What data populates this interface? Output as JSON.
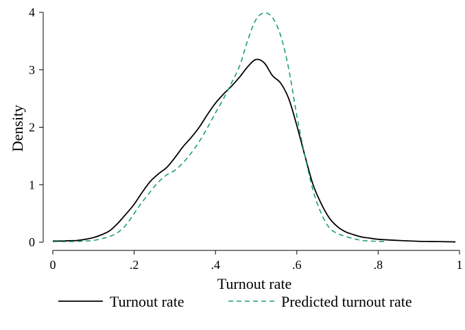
{
  "chart_data": {
    "type": "line",
    "title": "",
    "xlabel": "Turnout rate",
    "ylabel": "Density",
    "xlim": [
      0,
      1
    ],
    "ylim": [
      0,
      4
    ],
    "x_ticks": [
      {
        "value": 0,
        "label": "0"
      },
      {
        "value": 0.2,
        "label": ".2"
      },
      {
        "value": 0.4,
        "label": ".4"
      },
      {
        "value": 0.6,
        "label": ".6"
      },
      {
        "value": 0.8,
        "label": ".8"
      },
      {
        "value": 1,
        "label": "1"
      }
    ],
    "y_ticks": [
      {
        "value": 0,
        "label": "0"
      },
      {
        "value": 1,
        "label": "1"
      },
      {
        "value": 2,
        "label": "2"
      },
      {
        "value": 3,
        "label": "3"
      },
      {
        "value": 4,
        "label": "4"
      }
    ],
    "grid": false,
    "legend_position": "bottom",
    "series": [
      {
        "name": "Turnout rate",
        "color": "#000000",
        "style": "solid",
        "x": [
          0.0,
          0.02,
          0.04,
          0.06,
          0.08,
          0.1,
          0.12,
          0.14,
          0.16,
          0.18,
          0.2,
          0.22,
          0.24,
          0.26,
          0.28,
          0.3,
          0.32,
          0.34,
          0.36,
          0.38,
          0.4,
          0.42,
          0.44,
          0.46,
          0.48,
          0.5,
          0.52,
          0.54,
          0.56,
          0.58,
          0.6,
          0.62,
          0.64,
          0.66,
          0.68,
          0.7,
          0.72,
          0.74,
          0.76,
          0.78,
          0.8,
          0.85,
          0.9,
          0.95,
          0.99
        ],
        "y": [
          0.02,
          0.02,
          0.025,
          0.03,
          0.05,
          0.08,
          0.13,
          0.2,
          0.33,
          0.49,
          0.66,
          0.87,
          1.06,
          1.19,
          1.3,
          1.47,
          1.66,
          1.82,
          2.0,
          2.22,
          2.42,
          2.58,
          2.72,
          2.88,
          3.06,
          3.18,
          3.12,
          2.9,
          2.77,
          2.5,
          2.03,
          1.5,
          1.0,
          0.67,
          0.42,
          0.27,
          0.18,
          0.13,
          0.09,
          0.07,
          0.05,
          0.03,
          0.015,
          0.01,
          0.005
        ]
      },
      {
        "name": "Predicted turnout rate",
        "color": "#1a9b7c",
        "style": "dashed",
        "x": [
          0.0,
          0.04,
          0.08,
          0.1,
          0.12,
          0.14,
          0.16,
          0.18,
          0.2,
          0.22,
          0.24,
          0.26,
          0.28,
          0.3,
          0.32,
          0.34,
          0.36,
          0.38,
          0.4,
          0.42,
          0.44,
          0.46,
          0.48,
          0.5,
          0.52,
          0.54,
          0.56,
          0.58,
          0.6,
          0.62,
          0.64,
          0.66,
          0.68,
          0.7,
          0.72,
          0.74,
          0.76,
          0.78,
          0.8,
          0.82
        ],
        "y": [
          0.01,
          0.01,
          0.02,
          0.03,
          0.06,
          0.1,
          0.17,
          0.3,
          0.5,
          0.7,
          0.88,
          1.05,
          1.17,
          1.25,
          1.38,
          1.55,
          1.75,
          1.99,
          2.25,
          2.5,
          2.78,
          3.08,
          3.53,
          3.88,
          3.99,
          3.91,
          3.6,
          3.02,
          2.2,
          1.5,
          0.9,
          0.5,
          0.25,
          0.15,
          0.1,
          0.06,
          0.03,
          0.02,
          0.015,
          0.01
        ]
      }
    ]
  }
}
